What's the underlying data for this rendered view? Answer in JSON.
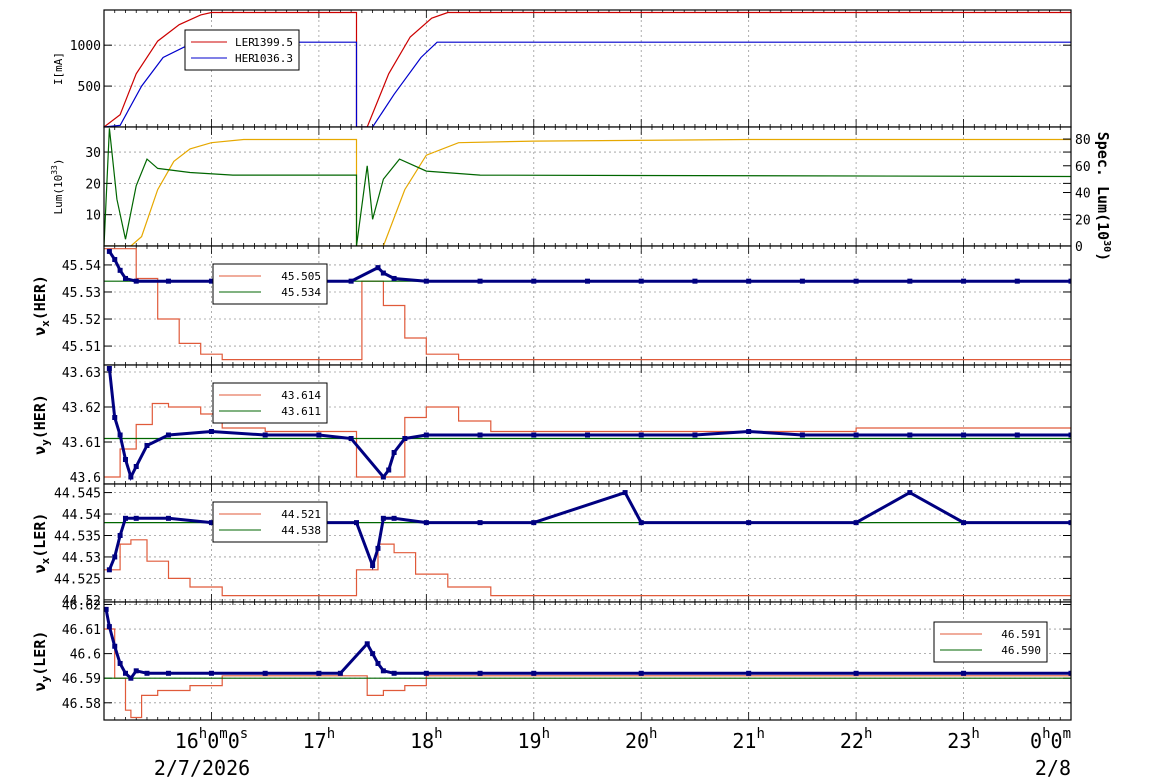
{
  "colors": {
    "red": "#cc0000",
    "blue": "#0000cc",
    "gold": "#e6a800",
    "green": "#006600",
    "salmon": "#e05a3a",
    "navy": "#000080",
    "grid": "#9a9a9a"
  },
  "time_axis": {
    "range_hours": [
      15.0,
      24.0
    ],
    "ticks": [
      {
        "t": 16,
        "label": "16",
        "suffix": "0",
        "suffix2": "0",
        "unit": "h",
        "unit2": "m",
        "unit3": "s"
      },
      {
        "t": 17,
        "label": "17",
        "unit": "h"
      },
      {
        "t": 18,
        "label": "18",
        "unit": "h"
      },
      {
        "t": 19,
        "label": "19",
        "unit": "h"
      },
      {
        "t": 20,
        "label": "20",
        "unit": "h"
      },
      {
        "t": 21,
        "label": "21",
        "unit": "h"
      },
      {
        "t": 22,
        "label": "22",
        "unit": "h"
      },
      {
        "t": 23,
        "label": "23",
        "unit": "h"
      },
      {
        "t": 24,
        "label": "0",
        "suffix": "0",
        "unit": "h",
        "unit2": "m"
      }
    ],
    "date_left": "2/7/2026",
    "date_right": "2/8"
  },
  "chart_data": [
    {
      "type": "line",
      "ylabel": "I[mA]",
      "ylim": [
        0,
        1430
      ],
      "yticks": [
        500,
        1000
      ],
      "legend": [
        {
          "name": "LER",
          "value": "1399.5",
          "color": "#cc0000"
        },
        {
          "name": "HER",
          "value": "1036.3",
          "color": "#0000cc"
        }
      ],
      "series": [
        {
          "name": "LER",
          "color": "#cc0000",
          "x": [
            15.0,
            15.15,
            15.3,
            15.5,
            15.7,
            15.9,
            16.0,
            17.35,
            17.35,
            17.45,
            17.65,
            17.85,
            18.05,
            18.2,
            24.0
          ],
          "y": [
            0,
            150,
            650,
            1050,
            1250,
            1370,
            1399,
            1399,
            0,
            0,
            650,
            1100,
            1330,
            1399,
            1399
          ]
        },
        {
          "name": "HER",
          "color": "#0000cc",
          "x": [
            15.0,
            15.15,
            15.35,
            15.55,
            15.75,
            15.95,
            16.05,
            17.35,
            17.35,
            17.5,
            17.7,
            17.95,
            18.1,
            24.0
          ],
          "y": [
            0,
            20,
            500,
            850,
            980,
            1030,
            1036,
            1036,
            0,
            0,
            400,
            850,
            1036,
            1036
          ]
        }
      ]
    },
    {
      "type": "line",
      "ylabel": "Lum(10",
      "ylabel_exp": "33",
      "ylabel_close": ")",
      "ylim": [
        0,
        38
      ],
      "yticks": [
        10,
        20,
        30
      ],
      "y2label": "Spec. Lum(10",
      "y2label_exp": "30",
      "y2label_close": ")",
      "y2lim": [
        0,
        89
      ],
      "y2ticks": [
        0,
        20,
        40,
        60,
        80
      ],
      "series": [
        {
          "name": "Lum",
          "color": "#e6a800",
          "axis": "left",
          "x": [
            15.0,
            15.25,
            15.35,
            15.5,
            15.65,
            15.8,
            16.0,
            16.3,
            17.35,
            17.35,
            17.6,
            17.8,
            18.0,
            18.3,
            19.0,
            21.0,
            24.0
          ],
          "y": [
            0,
            0,
            3,
            18,
            27,
            31,
            33,
            34,
            34,
            0,
            0,
            18,
            29,
            33,
            33.5,
            34,
            34
          ]
        },
        {
          "name": "Spec. Lum",
          "color": "#006600",
          "axis": "right",
          "x": [
            15.0,
            15.05,
            15.12,
            15.2,
            15.3,
            15.4,
            15.5,
            15.8,
            16.2,
            17.35,
            17.35,
            17.45,
            17.5,
            17.6,
            17.75,
            18.0,
            18.5,
            24.0
          ],
          "y": [
            0,
            88,
            35,
            5,
            45,
            65,
            58,
            55,
            53,
            53,
            0,
            60,
            20,
            50,
            65,
            56,
            53,
            52
          ]
        }
      ]
    },
    {
      "type": "scatter",
      "ylabel": "ν",
      "ylabel_sub": "x",
      "ylabel_close": "(HER)",
      "ylim": [
        45.503,
        45.547
      ],
      "yticks": [
        45.51,
        45.52,
        45.53,
        45.54
      ],
      "legend": [
        {
          "value": "45.505",
          "color": "#e05a3a"
        },
        {
          "value": "45.534",
          "color": "#006600"
        }
      ],
      "series": [
        {
          "name": "set",
          "color": "#e05a3a",
          "mode": "step",
          "x": [
            15.0,
            15.3,
            15.5,
            15.7,
            15.9,
            16.1,
            17.35,
            17.4,
            17.6,
            17.8,
            18.0,
            18.3,
            24.0
          ],
          "y": [
            45.546,
            45.535,
            45.52,
            45.511,
            45.507,
            45.505,
            45.505,
            45.534,
            45.525,
            45.513,
            45.507,
            45.505,
            45.505
          ]
        },
        {
          "name": "ref",
          "color": "#006600",
          "mode": "line",
          "x": [
            15.0,
            24.0
          ],
          "y": [
            45.534,
            45.534
          ]
        },
        {
          "name": "measured",
          "color": "#000080",
          "mode": "dots",
          "x": [
            15.05,
            15.1,
            15.15,
            15.2,
            15.3,
            15.6,
            16.0,
            16.5,
            17.0,
            17.3,
            17.55,
            17.6,
            17.7,
            18.0,
            18.5,
            19.0,
            19.5,
            20.0,
            20.5,
            21.0,
            21.5,
            22.0,
            22.5,
            23.0,
            23.5,
            24.0
          ],
          "y": [
            45.545,
            45.542,
            45.538,
            45.535,
            45.534,
            45.534,
            45.534,
            45.534,
            45.534,
            45.534,
            45.539,
            45.537,
            45.535,
            45.534,
            45.534,
            45.534,
            45.534,
            45.534,
            45.534,
            45.534,
            45.534,
            45.534,
            45.534,
            45.534,
            45.534,
            45.534
          ]
        }
      ]
    },
    {
      "type": "scatter",
      "ylabel": "ν",
      "ylabel_sub": "y",
      "ylabel_close": "(HER)",
      "ylim": [
        43.598,
        43.632
      ],
      "yticks": [
        43.6,
        43.61,
        43.62,
        43.63
      ],
      "legend": [
        {
          "value": "43.614",
          "color": "#e05a3a"
        },
        {
          "value": "43.611",
          "color": "#006600"
        }
      ],
      "series": [
        {
          "name": "set",
          "color": "#e05a3a",
          "mode": "step",
          "x": [
            15.0,
            15.15,
            15.3,
            15.45,
            15.6,
            15.9,
            16.1,
            16.5,
            17.35,
            17.35,
            17.65,
            17.8,
            18.0,
            18.3,
            18.6,
            19.5,
            20.5,
            22.0,
            24.0
          ],
          "y": [
            43.6,
            43.608,
            43.615,
            43.621,
            43.62,
            43.618,
            43.614,
            43.613,
            43.612,
            43.6,
            43.6,
            43.617,
            43.62,
            43.616,
            43.613,
            43.613,
            43.613,
            43.614,
            43.613
          ]
        },
        {
          "name": "ref",
          "color": "#006600",
          "mode": "line",
          "x": [
            15.0,
            24.0
          ],
          "y": [
            43.611,
            43.611
          ]
        },
        {
          "name": "measured",
          "color": "#000080",
          "mode": "dots",
          "x": [
            15.05,
            15.1,
            15.15,
            15.2,
            15.25,
            15.3,
            15.4,
            15.6,
            16.0,
            16.5,
            17.0,
            17.3,
            17.6,
            17.65,
            17.7,
            17.8,
            18.0,
            18.5,
            19.0,
            19.5,
            20.0,
            20.5,
            21.0,
            21.5,
            22.0,
            22.5,
            23.0,
            23.5,
            24.0
          ],
          "y": [
            43.631,
            43.617,
            43.612,
            43.605,
            43.6,
            43.603,
            43.609,
            43.612,
            43.613,
            43.612,
            43.612,
            43.611,
            43.6,
            43.602,
            43.607,
            43.611,
            43.612,
            43.612,
            43.612,
            43.612,
            43.612,
            43.612,
            43.613,
            43.612,
            43.612,
            43.612,
            43.612,
            43.612,
            43.612
          ]
        }
      ]
    },
    {
      "type": "scatter",
      "ylabel": "ν",
      "ylabel_sub": "x",
      "ylabel_close": "(LER)",
      "ylim": [
        44.5195,
        44.547
      ],
      "yticks": [
        44.52,
        44.525,
        44.53,
        44.535,
        44.54,
        44.545
      ],
      "legend": [
        {
          "value": "44.521",
          "color": "#e05a3a"
        },
        {
          "value": "44.538",
          "color": "#006600"
        }
      ],
      "series": [
        {
          "name": "set",
          "color": "#e05a3a",
          "mode": "step",
          "x": [
            15.0,
            15.15,
            15.25,
            15.4,
            15.6,
            15.8,
            16.1,
            16.5,
            17.35,
            17.35,
            17.55,
            17.7,
            17.9,
            18.2,
            18.6,
            24.0
          ],
          "y": [
            44.527,
            44.533,
            44.534,
            44.529,
            44.525,
            44.523,
            44.521,
            44.521,
            44.521,
            44.527,
            44.533,
            44.531,
            44.526,
            44.523,
            44.521,
            44.521
          ]
        },
        {
          "name": "ref",
          "color": "#006600",
          "mode": "line",
          "x": [
            15.0,
            24.0
          ],
          "y": [
            44.538,
            44.538
          ]
        },
        {
          "name": "measured",
          "color": "#000080",
          "mode": "dots",
          "x": [
            15.05,
            15.1,
            15.15,
            15.2,
            15.3,
            15.6,
            16.0,
            16.5,
            17.0,
            17.35,
            17.5,
            17.55,
            17.6,
            17.7,
            18.0,
            18.5,
            19.0,
            19.85,
            20.0,
            21.0,
            22.0,
            22.5,
            23.0,
            24.0
          ],
          "y": [
            44.527,
            44.53,
            44.535,
            44.539,
            44.539,
            44.539,
            44.538,
            44.538,
            44.538,
            44.538,
            44.528,
            44.532,
            44.539,
            44.539,
            44.538,
            44.538,
            44.538,
            44.545,
            44.538,
            44.538,
            44.538,
            44.545,
            44.538,
            44.538
          ]
        }
      ]
    },
    {
      "type": "scatter",
      "ylabel": "ν",
      "ylabel_sub": "y",
      "ylabel_close": "(LER)",
      "ylim": [
        46.573,
        46.621
      ],
      "yticks": [
        46.58,
        46.59,
        46.6,
        46.61,
        46.62
      ],
      "legend": [
        {
          "value": "46.591",
          "color": "#e05a3a"
        },
        {
          "value": "46.590",
          "color": "#006600"
        }
      ],
      "legend_position": "right",
      "series": [
        {
          "name": "set",
          "color": "#e05a3a",
          "mode": "step",
          "x": [
            15.0,
            15.1,
            15.2,
            15.25,
            15.35,
            15.5,
            15.8,
            16.1,
            17.2,
            17.45,
            17.6,
            17.8,
            18.0,
            24.0
          ],
          "y": [
            46.61,
            46.59,
            46.577,
            46.574,
            46.583,
            46.585,
            46.587,
            46.591,
            46.591,
            46.583,
            46.585,
            46.587,
            46.591,
            46.591
          ]
        },
        {
          "name": "ref",
          "color": "#006600",
          "mode": "line",
          "x": [
            15.0,
            24.0
          ],
          "y": [
            46.59,
            46.59
          ]
        },
        {
          "name": "measured",
          "color": "#000080",
          "mode": "dots",
          "x": [
            15.02,
            15.05,
            15.1,
            15.15,
            15.2,
            15.25,
            15.3,
            15.4,
            15.6,
            16.0,
            16.5,
            17.0,
            17.2,
            17.45,
            17.5,
            17.55,
            17.6,
            17.7,
            18.0,
            18.5,
            19.0,
            20.0,
            21.0,
            22.0,
            23.0,
            24.0
          ],
          "y": [
            46.618,
            46.611,
            46.603,
            46.596,
            46.592,
            46.59,
            46.593,
            46.592,
            46.592,
            46.592,
            46.592,
            46.592,
            46.592,
            46.604,
            46.6,
            46.596,
            46.593,
            46.592,
            46.592,
            46.592,
            46.592,
            46.592,
            46.592,
            46.592,
            46.592,
            46.592
          ]
        }
      ]
    }
  ]
}
